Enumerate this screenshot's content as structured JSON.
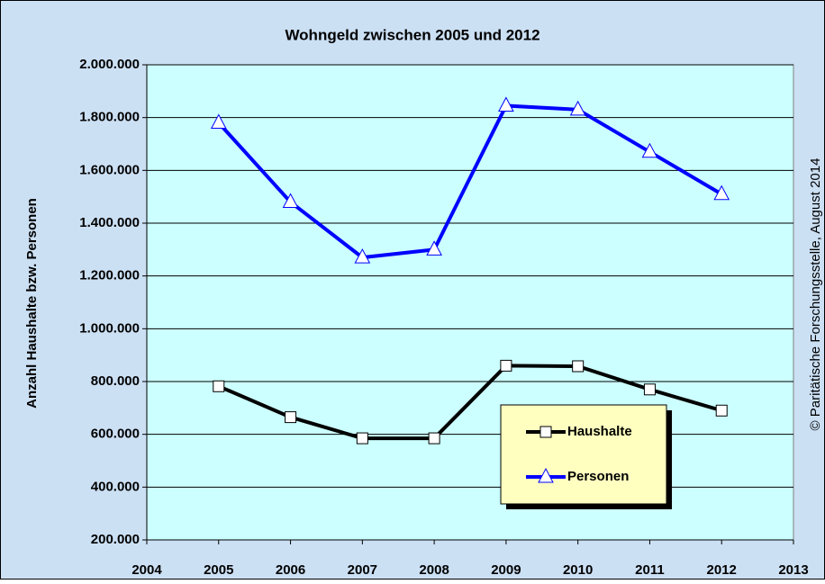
{
  "chart_data": {
    "type": "line",
    "title": "Wohngeld zwischen 2005 und 2012",
    "y_label": "Anzahl Haushalte bzw. Personen",
    "source": "© Paritätische Forschungsstelle, August 2014",
    "x": [
      2005,
      2006,
      2007,
      2008,
      2009,
      2010,
      2011,
      2012
    ],
    "xlim": [
      2004,
      2013
    ],
    "xticks": [
      2004,
      2005,
      2006,
      2007,
      2008,
      2009,
      2010,
      2011,
      2012,
      2013
    ],
    "ylim": [
      200000,
      2000000
    ],
    "yticks": [
      {
        "value": 200000,
        "label": "200.000"
      },
      {
        "value": 400000,
        "label": "400.000"
      },
      {
        "value": 600000,
        "label": "600.000"
      },
      {
        "value": 800000,
        "label": "800.000"
      },
      {
        "value": 1000000,
        "label": "1.000.000"
      },
      {
        "value": 1200000,
        "label": "1.200.000"
      },
      {
        "value": 1400000,
        "label": "1.400.000"
      },
      {
        "value": 1600000,
        "label": "1.600.000"
      },
      {
        "value": 1800000,
        "label": "1.800.000"
      },
      {
        "value": 2000000,
        "label": "2.000.000"
      }
    ],
    "grid": true,
    "legend": "lower right",
    "series": [
      {
        "name": "Haushalte",
        "color": "#000000",
        "marker": "square",
        "values": [
          782000,
          665000,
          585000,
          585000,
          860000,
          858000,
          770000,
          690000
        ]
      },
      {
        "name": "Personen",
        "color": "#0000ff",
        "marker": "triangle",
        "values": [
          1780000,
          1480000,
          1270000,
          1300000,
          1845000,
          1830000,
          1670000,
          1510000
        ]
      }
    ]
  }
}
